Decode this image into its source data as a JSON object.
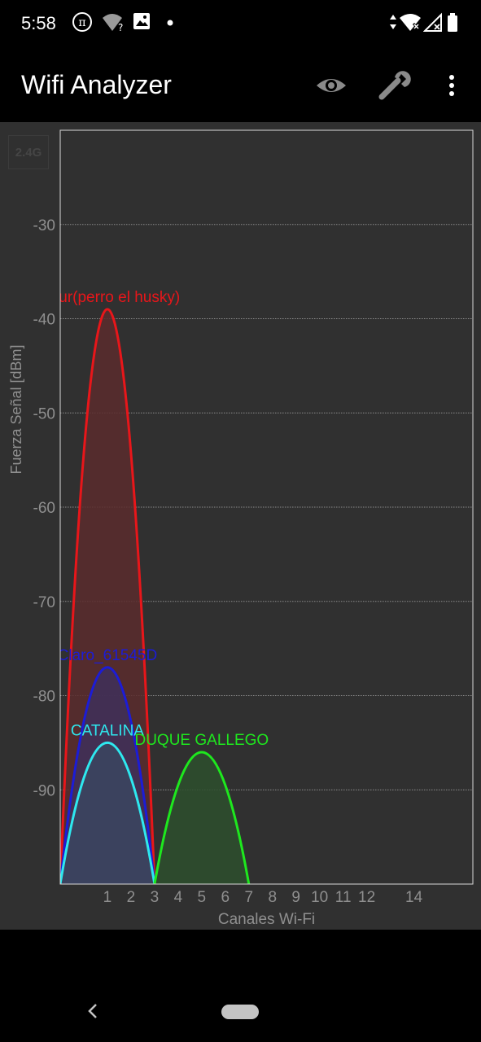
{
  "status_bar": {
    "time": "5:58",
    "left_icons": [
      "pi-icon",
      "wifi-question-icon",
      "image-icon",
      "dot-icon"
    ],
    "right_icons": [
      "data-arrows-icon",
      "wifi-x-icon",
      "signal-x-icon",
      "battery-icon"
    ]
  },
  "app_bar": {
    "title": "Wifi Analyzer",
    "actions": [
      "eye-icon",
      "wrench-icon",
      "more-vert-icon"
    ]
  },
  "band_toggle": {
    "label": "2.4G"
  },
  "chart_data": {
    "type": "area",
    "xlabel": "Canales Wi-Fi",
    "ylabel": "Fuerza Señal [dBm]",
    "x_ticks": [
      1,
      2,
      3,
      4,
      5,
      6,
      7,
      8,
      9,
      10,
      11,
      12,
      14
    ],
    "y_ticks": [
      -30,
      -40,
      -50,
      -60,
      -70,
      -80,
      -90
    ],
    "xlim": [
      -1,
      16.5
    ],
    "ylim": [
      -100,
      -20
    ],
    "grid": true,
    "series": [
      {
        "name": "Takur(perro el husky)",
        "label_shown": "akur(perro el husky)",
        "channel": 1,
        "signal": -39,
        "color": "#e8161a",
        "fill": "#5a2b2d"
      },
      {
        "name": "Claro_61545D",
        "label_shown": "Claro_61545D",
        "channel": 1,
        "signal": -77,
        "color": "#1c1cd6",
        "fill": "#40305a"
      },
      {
        "name": "CATALINA",
        "label_shown": "CATALINA",
        "channel": 1,
        "signal": -85,
        "color": "#2ee8ef",
        "fill": "#3a4560"
      },
      {
        "name": "DUQUE GALLEGO",
        "label_shown": "DUQUE GALLEGO",
        "channel": 5,
        "signal": -86,
        "color": "#1ee81e",
        "fill": "#2d4f2d"
      }
    ]
  },
  "nav": {
    "back": "back-icon",
    "home": "home-pill"
  }
}
